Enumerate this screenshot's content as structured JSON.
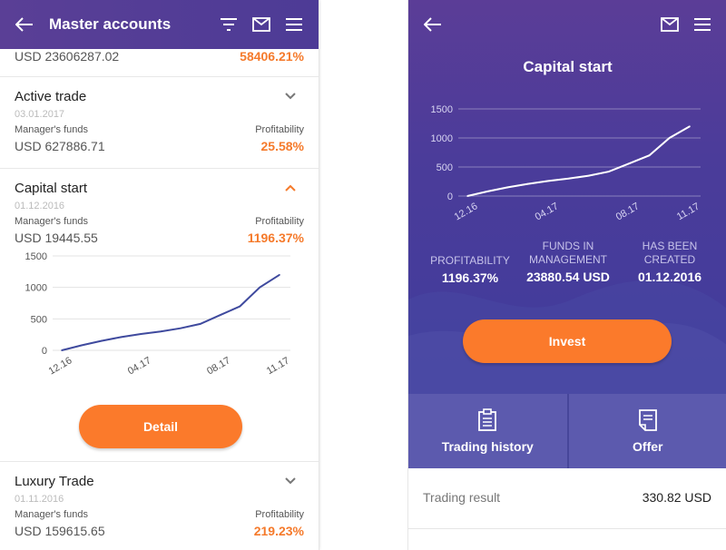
{
  "left": {
    "header": {
      "title": "Master accounts"
    },
    "top_row": {
      "amount": "USD 23606287.02",
      "profit": "58406.21%"
    },
    "accounts": [
      {
        "name": "Active trade",
        "date": "03.01.2017",
        "funds_label": "Manager's funds",
        "funds": "USD 627886.71",
        "profit_label": "Profitability",
        "profit": "25.58%"
      },
      {
        "name": "Capital start",
        "date": "01.12.2016",
        "funds_label": "Manager's funds",
        "funds": "USD 19445.55",
        "profit_label": "Profitability",
        "profit": "1196.37%"
      },
      {
        "name": "Luxury Trade",
        "date": "01.11.2016",
        "funds_label": "Manager's funds",
        "funds": "USD 159615.65",
        "profit_label": "Profitability",
        "profit": "219.23%"
      }
    ],
    "detail_button": "Detail"
  },
  "right": {
    "title": "Capital start",
    "stats": [
      {
        "label_l1": "PROFITABILITY",
        "label_l2": "",
        "value": "1196.37%"
      },
      {
        "label_l1": "FUNDS IN",
        "label_l2": "MANAGEMENT",
        "value": "23880.54 USD"
      },
      {
        "label_l1": "HAS BEEN",
        "label_l2": "CREATED",
        "value": "01.12.2016"
      }
    ],
    "invest_button": "Invest",
    "tiles": [
      {
        "label": "Trading history",
        "icon": "clipboard-icon"
      },
      {
        "label": "Offer",
        "icon": "document-icon"
      }
    ],
    "trading_result": {
      "label": "Trading result",
      "value": "330.82 USD"
    }
  },
  "colors": {
    "accent": "#fb7a2b",
    "header": "#503c96",
    "tile": "#5c5aae",
    "line": "#3f4a9e"
  },
  "chart_data": {
    "type": "line",
    "x": [
      "12.16",
      "01.17",
      "02.17",
      "03.17",
      "04.17",
      "05.17",
      "06.17",
      "07.17",
      "08.17",
      "09.17",
      "10.17",
      "11.17"
    ],
    "y": [
      0,
      80,
      150,
      210,
      260,
      300,
      350,
      420,
      560,
      700,
      1000,
      1200
    ],
    "xticks": [
      "12.16",
      "04.17",
      "08.17",
      "11.17"
    ],
    "yticks": [
      "0",
      "500",
      "1000",
      "1500"
    ],
    "ylim": [
      0,
      1500
    ],
    "grid": true
  }
}
